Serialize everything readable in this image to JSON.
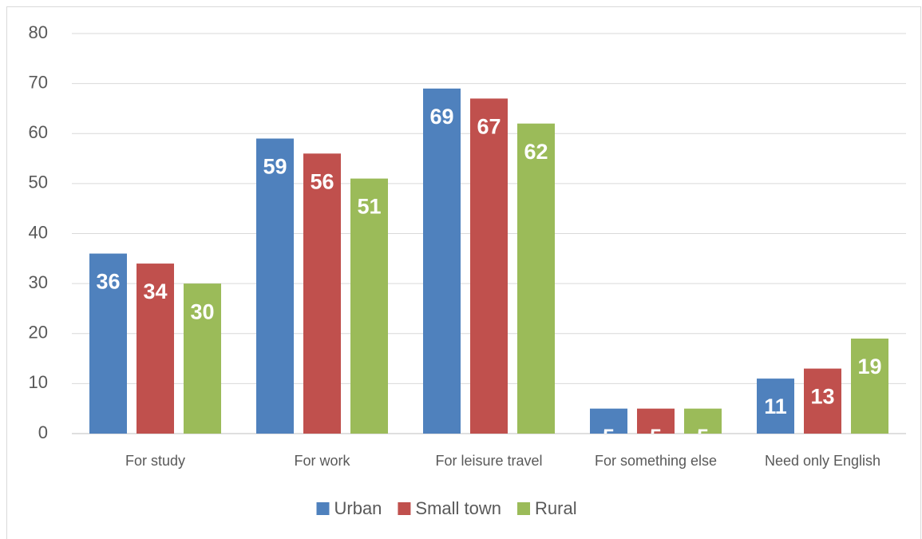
{
  "chart_data": {
    "type": "bar",
    "categories": [
      "For study",
      "For work",
      "For leisure travel",
      "For something else",
      "Need only English"
    ],
    "series": [
      {
        "name": "Urban",
        "color": "#4f81bd",
        "values": [
          36,
          59,
          69,
          5,
          11
        ]
      },
      {
        "name": "Small town",
        "color": "#c0504d",
        "values": [
          34,
          56,
          67,
          5,
          13
        ]
      },
      {
        "name": "Rural",
        "color": "#9bbb59",
        "values": [
          30,
          51,
          62,
          5,
          19
        ]
      }
    ],
    "ylim": [
      0,
      80
    ],
    "yticks": [
      0,
      10,
      20,
      30,
      40,
      50,
      60,
      70,
      80
    ],
    "grid": true,
    "legend": "bottom"
  }
}
